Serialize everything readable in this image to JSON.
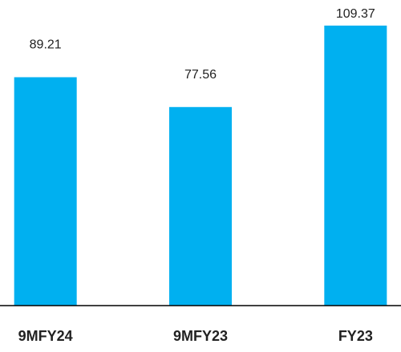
{
  "chart_data": {
    "type": "bar",
    "categories": [
      "9MFY24",
      "9MFY23",
      "FY23"
    ],
    "values": [
      89.21,
      77.56,
      109.37
    ],
    "color": "#00b0f0"
  }
}
